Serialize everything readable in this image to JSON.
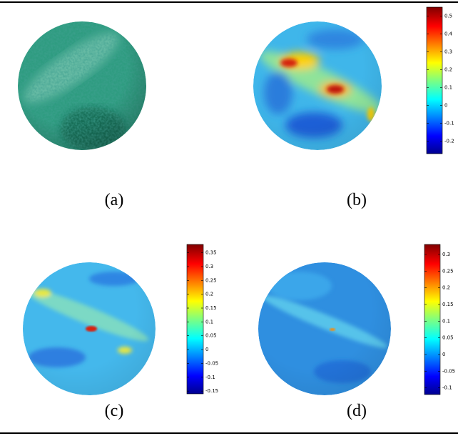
{
  "panels": [
    {
      "caption": "(a)"
    },
    {
      "caption": "(b)",
      "colorbar": {
        "lim": [
          -0.27,
          0.55
        ],
        "ticks": [
          0.5,
          0.4,
          0.3,
          0.2,
          0.1,
          0,
          -0.1,
          -0.2
        ]
      }
    },
    {
      "caption": "(c)",
      "colorbar": {
        "lim": [
          -0.16,
          0.38
        ],
        "ticks": [
          0.35,
          0.3,
          0.25,
          0.2,
          0.15,
          0.1,
          0.05,
          0,
          -0.05,
          -0.1,
          -0.15
        ]
      }
    },
    {
      "caption": "(d)",
      "colorbar": {
        "lim": [
          -0.12,
          0.33
        ],
        "ticks": [
          0.3,
          0.25,
          0.2,
          0.15,
          0.1,
          0.05,
          0,
          -0.05,
          -0.1
        ]
      }
    }
  ]
}
